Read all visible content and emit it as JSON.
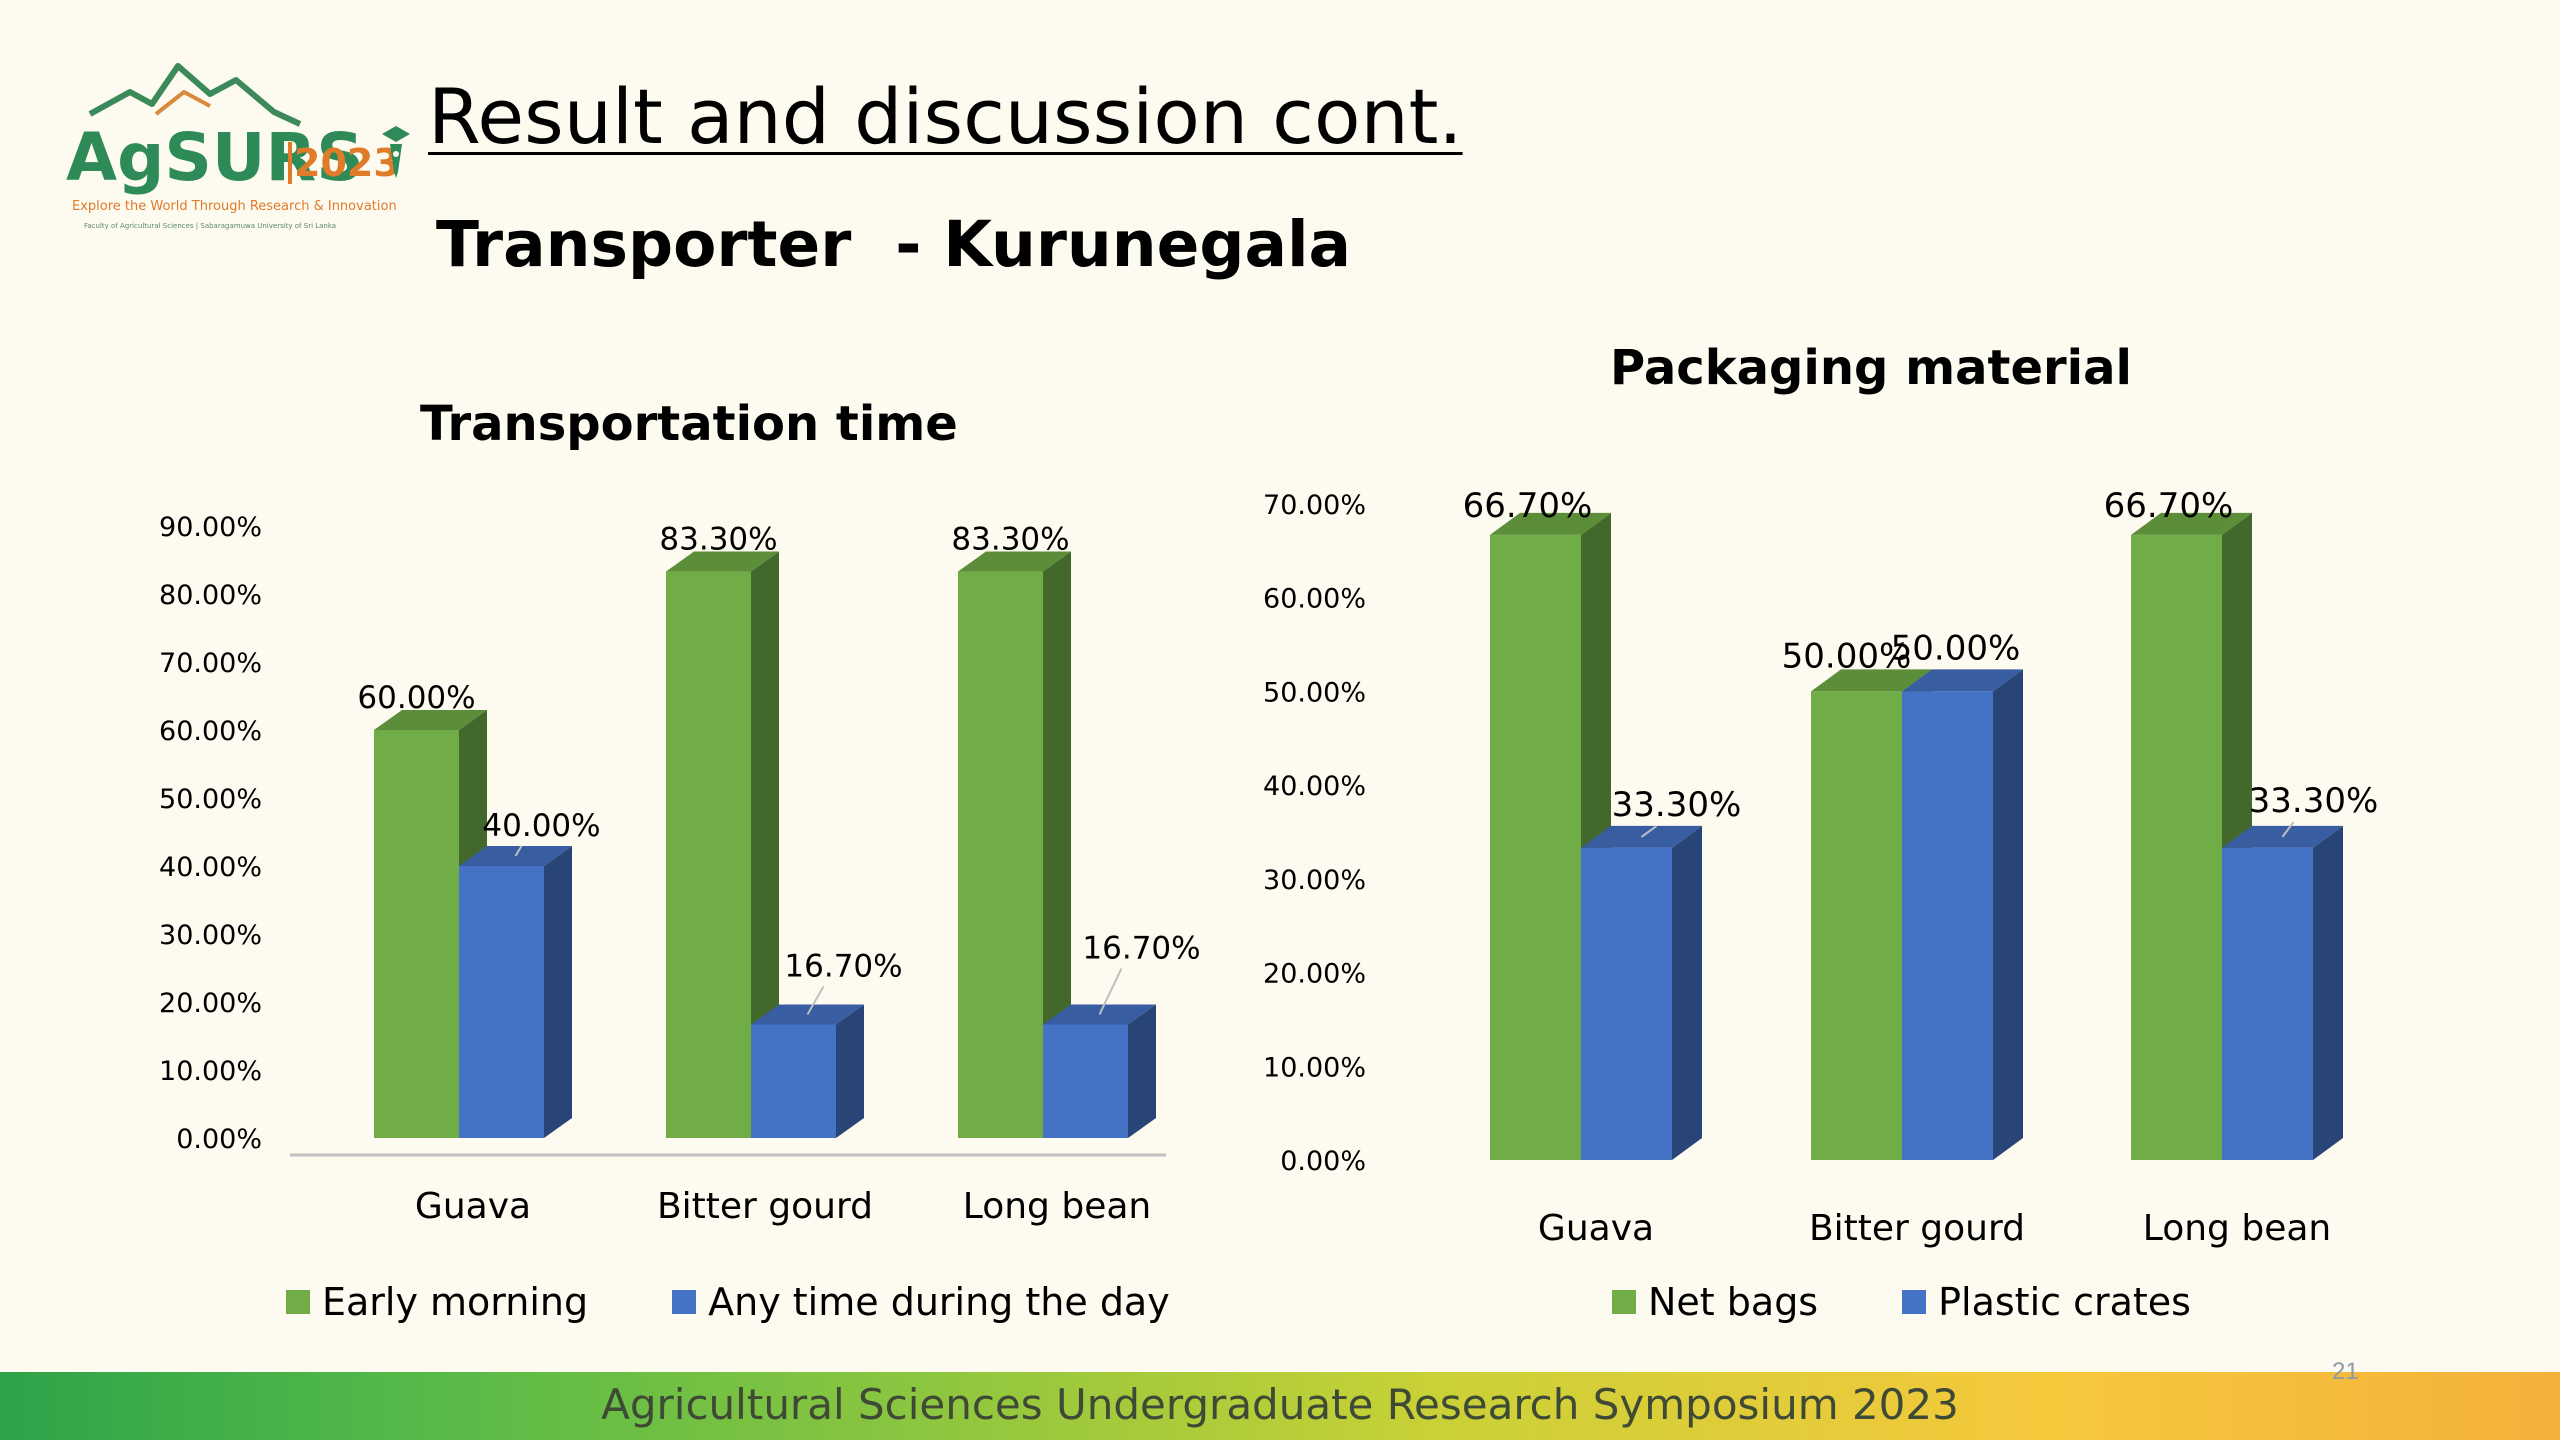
{
  "slide": {
    "title": "Result and discussion cont.",
    "subtitle": "Transporter  - Kurunegala",
    "footer": "Agricultural Sciences Undergraduate Research Symposium 2023",
    "page_number": "21"
  },
  "logo": {
    "name": "AgSURS",
    "year": "2023",
    "tagline": "Explore the World Through Research & Innovation",
    "small_print": "Faculty of Agricultural Sciences | Sabaragamuwa University of Sri Lanka",
    "icon": "mountain-pen-icon"
  },
  "colors": {
    "green": "#70ad47",
    "blue": "#4472c4",
    "background": "#fdfaf0"
  },
  "chart_data": [
    {
      "id": "transportation-time",
      "type": "bar",
      "title": "Transportation time",
      "categories": [
        "Guava",
        "Bitter gourd",
        "Long bean"
      ],
      "series": [
        {
          "name": "Early morning",
          "values": [
            60.0,
            83.3,
            83.3
          ],
          "labels": [
            "60.00%",
            "83.30%",
            "83.30%"
          ],
          "color": "#70ad47"
        },
        {
          "name": "Any time during the day",
          "values": [
            40.0,
            16.7,
            16.7
          ],
          "labels": [
            "40.00%",
            "16.70%",
            "16.70%"
          ],
          "color": "#4472c4"
        }
      ],
      "ylim": [
        0,
        90
      ],
      "yticks": [
        "0.00%",
        "10.00%",
        "20.00%",
        "30.00%",
        "40.00%",
        "50.00%",
        "60.00%",
        "70.00%",
        "80.00%",
        "90.00%"
      ],
      "xlabel": "",
      "ylabel": "",
      "legend": "bottom",
      "grid": false,
      "style": "3d"
    },
    {
      "id": "packaging-material",
      "type": "bar",
      "title": "Packaging material",
      "categories": [
        "Guava",
        "Bitter gourd",
        "Long bean"
      ],
      "series": [
        {
          "name": "Net bags",
          "values": [
            66.7,
            50.0,
            66.7
          ],
          "labels": [
            "66.70%",
            "50.00%",
            "66.70%"
          ],
          "color": "#70ad47"
        },
        {
          "name": "Plastic crates",
          "values": [
            33.3,
            50.0,
            33.3
          ],
          "labels": [
            "33.30%",
            "50.00%",
            "33.30%"
          ],
          "color": "#4472c4"
        }
      ],
      "ylim": [
        0,
        70
      ],
      "yticks": [
        "0.00%",
        "10.00%",
        "20.00%",
        "30.00%",
        "40.00%",
        "50.00%",
        "60.00%",
        "70.00%"
      ],
      "xlabel": "",
      "ylabel": "",
      "legend": "bottom",
      "grid": false,
      "style": "3d"
    }
  ]
}
